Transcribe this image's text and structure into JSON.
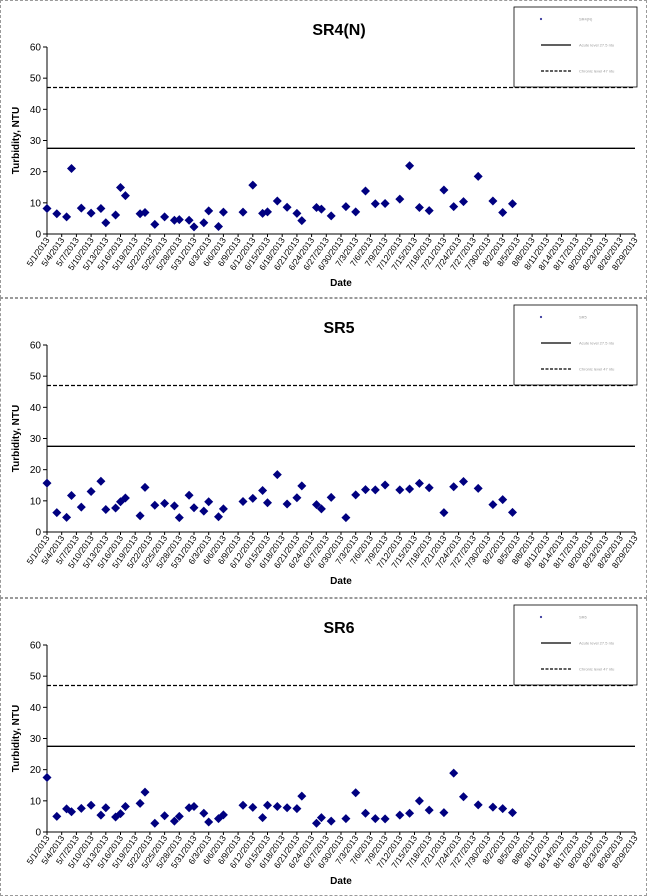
{
  "chart_data": [
    {
      "type": "scatter",
      "title": "SR4(N)",
      "xlabel": "Date",
      "ylabel": "Turbidity, NTU",
      "ylim": [
        0,
        60
      ],
      "yticks": [
        0,
        10,
        20,
        30,
        40,
        50,
        60
      ],
      "grid": false,
      "legend_position": "top-right",
      "legend": [
        "SR4(N)",
        "Acute level 27.5 ntu",
        "Chronic level 47 ntu"
      ],
      "reference_lines": [
        {
          "value": 27.5,
          "style": "solid"
        },
        {
          "value": 47,
          "style": "dashed"
        }
      ],
      "x_tick_labels": [
        "5/1/2013",
        "5/4/2013",
        "5/7/2013",
        "5/10/2013",
        "5/13/2013",
        "5/16/2013",
        "5/19/2013",
        "5/22/2013",
        "5/25/2013",
        "5/28/2013",
        "5/31/2013",
        "6/3/2013",
        "6/6/2013",
        "6/9/2013",
        "6/12/2013",
        "6/15/2013",
        "6/18/2013",
        "6/21/2013",
        "6/24/2013",
        "6/27/2013",
        "6/30/2013",
        "7/3/2013",
        "7/6/2013",
        "7/9/2013",
        "7/12/2013",
        "7/15/2013",
        "7/18/2013",
        "7/21/2013",
        "7/24/2013",
        "7/27/2013",
        "7/30/2013",
        "8/2/2013",
        "8/5/2013",
        "8/8/2013",
        "8/11/2013",
        "8/14/2013",
        "8/17/2013",
        "8/20/2013",
        "8/23/2013",
        "8/26/2013",
        "8/29/2013"
      ],
      "series": [
        {
          "name": "SR4(N)",
          "color": "#000080",
          "points": [
            [
              "5/1/2013",
              8.2
            ],
            [
              "5/3/2013",
              6.5
            ],
            [
              "5/5/2013",
              5.5
            ],
            [
              "5/6/2013",
              21
            ],
            [
              "5/8/2013",
              8.3
            ],
            [
              "5/10/2013",
              6.7
            ],
            [
              "5/12/2013",
              8.2
            ],
            [
              "5/13/2013",
              3.6
            ],
            [
              "5/15/2013",
              6.1
            ],
            [
              "5/16/2013",
              14.9
            ],
            [
              "5/17/2013",
              12.3
            ],
            [
              "5/20/2013",
              6.5
            ],
            [
              "5/21/2013",
              6.9
            ],
            [
              "5/23/2013",
              3.1
            ],
            [
              "5/25/2013",
              5.5
            ],
            [
              "5/27/2013",
              4.4
            ],
            [
              "5/28/2013",
              4.6
            ],
            [
              "5/30/2013",
              4.4
            ],
            [
              "5/31/2013",
              2.3
            ],
            [
              "6/2/2013",
              3.6
            ],
            [
              "6/3/2013",
              7.4
            ],
            [
              "6/5/2013",
              2.4
            ],
            [
              "6/6/2013",
              7
            ],
            [
              "6/10/2013",
              7
            ],
            [
              "6/12/2013",
              15.7
            ],
            [
              "6/14/2013",
              6.6
            ],
            [
              "6/15/2013",
              7.1
            ],
            [
              "6/17/2013",
              10.6
            ],
            [
              "6/19/2013",
              8.6
            ],
            [
              "6/21/2013",
              6.6
            ],
            [
              "6/22/2013",
              4.3
            ],
            [
              "6/25/2013",
              8.5
            ],
            [
              "6/26/2013",
              8
            ],
            [
              "6/28/2013",
              5.8
            ],
            [
              "7/1/2013",
              8.8
            ],
            [
              "7/3/2013",
              7.1
            ],
            [
              "7/5/2013",
              13.8
            ],
            [
              "7/7/2013",
              9.7
            ],
            [
              "7/9/2013",
              9.8
            ],
            [
              "7/12/2013",
              11.2
            ],
            [
              "7/14/2013",
              21.9
            ],
            [
              "7/16/2013",
              8.5
            ],
            [
              "7/18/2013",
              7.5
            ],
            [
              "7/21/2013",
              14.1
            ],
            [
              "7/23/2013",
              8.8
            ],
            [
              "7/25/2013",
              10.4
            ],
            [
              "7/28/2013",
              18.5
            ],
            [
              "7/31/2013",
              10.6
            ],
            [
              "8/2/2013",
              6.9
            ],
            [
              "8/4/2013",
              9.7
            ]
          ]
        }
      ]
    },
    {
      "type": "scatter",
      "title": "SR5",
      "xlabel": "Date",
      "ylabel": "Turbidity, NTU",
      "ylim": [
        0,
        60
      ],
      "yticks": [
        0,
        10,
        20,
        30,
        40,
        50,
        60
      ],
      "grid": false,
      "legend_position": "top-right",
      "legend": [
        "SR5",
        "Acute level 27.5 ntu",
        "Chronic level 47 ntu"
      ],
      "reference_lines": [
        {
          "value": 27.5,
          "style": "solid"
        },
        {
          "value": 47,
          "style": "dashed"
        }
      ],
      "x_tick_labels": [
        "5/1/2013",
        "5/4/2013",
        "5/7/2013",
        "5/10/2013",
        "5/13/2013",
        "5/16/2013",
        "5/19/2013",
        "5/22/2013",
        "5/25/2013",
        "5/28/2013",
        "5/31/2013",
        "6/3/2013",
        "6/6/2013",
        "6/9/2013",
        "6/12/2013",
        "6/15/2013",
        "6/18/2013",
        "6/21/2013",
        "6/24/2013",
        "6/27/2013",
        "6/30/2013",
        "7/3/2013",
        "7/6/2013",
        "7/9/2013",
        "7/12/2013",
        "7/15/2013",
        "7/18/2013",
        "7/21/2013",
        "7/24/2013",
        "7/27/2013",
        "7/30/2013",
        "8/2/2013",
        "8/5/2013",
        "8/8/2013",
        "8/11/2013",
        "8/14/2013",
        "8/17/2013",
        "8/20/2013",
        "8/23/2013",
        "8/26/2013",
        "8/29/2013"
      ],
      "series": [
        {
          "name": "SR5",
          "color": "#000080",
          "points": [
            [
              "5/1/2013",
              15.7
            ],
            [
              "5/3/2013",
              6.2
            ],
            [
              "5/5/2013",
              4.7
            ],
            [
              "5/6/2013",
              11.7
            ],
            [
              "5/8/2013",
              8
            ],
            [
              "5/10/2013",
              13
            ],
            [
              "5/12/2013",
              16.3
            ],
            [
              "5/13/2013",
              7.2
            ],
            [
              "5/15/2013",
              7.7
            ],
            [
              "5/16/2013",
              9.7
            ],
            [
              "5/17/2013",
              10.9
            ],
            [
              "5/20/2013",
              5.2
            ],
            [
              "5/21/2013",
              14.3
            ],
            [
              "5/23/2013",
              8.6
            ],
            [
              "5/25/2013",
              9.2
            ],
            [
              "5/27/2013",
              8.4
            ],
            [
              "5/28/2013",
              4.6
            ],
            [
              "5/30/2013",
              11.8
            ],
            [
              "5/31/2013",
              7.8
            ],
            [
              "6/2/2013",
              6.7
            ],
            [
              "6/3/2013",
              9.7
            ],
            [
              "6/5/2013",
              4.9
            ],
            [
              "6/6/2013",
              7.4
            ],
            [
              "6/10/2013",
              9.8
            ],
            [
              "6/12/2013",
              10.8
            ],
            [
              "6/14/2013",
              13.3
            ],
            [
              "6/15/2013",
              9.4
            ],
            [
              "6/17/2013",
              18.4
            ],
            [
              "6/19/2013",
              9
            ],
            [
              "6/21/2013",
              11
            ],
            [
              "6/22/2013",
              14.8
            ],
            [
              "6/25/2013",
              8.8
            ],
            [
              "6/26/2013",
              7.4
            ],
            [
              "6/28/2013",
              11.1
            ],
            [
              "7/1/2013",
              4.6
            ],
            [
              "7/3/2013",
              11.9
            ],
            [
              "7/5/2013",
              13.6
            ],
            [
              "7/7/2013",
              13.5
            ],
            [
              "7/9/2013",
              15.1
            ],
            [
              "7/12/2013",
              13.5
            ],
            [
              "7/14/2013",
              13.8
            ],
            [
              "7/16/2013",
              15.6
            ],
            [
              "7/18/2013",
              14.2
            ],
            [
              "7/21/2013",
              6.2
            ],
            [
              "7/23/2013",
              14.5
            ],
            [
              "7/25/2013",
              16.2
            ],
            [
              "7/28/2013",
              14
            ],
            [
              "7/31/2013",
              8.8
            ],
            [
              "8/2/2013",
              10.4
            ],
            [
              "8/4/2013",
              6.3
            ]
          ]
        }
      ]
    },
    {
      "type": "scatter",
      "title": "SR6",
      "xlabel": "Date",
      "ylabel": "Turbidity, NTU",
      "ylim": [
        0,
        60
      ],
      "yticks": [
        0,
        10,
        20,
        30,
        40,
        50,
        60
      ],
      "grid": false,
      "legend_position": "top-right",
      "legend": [
        "SR6",
        "Acute level 27.5 ntu",
        "Chronic level 47 ntu"
      ],
      "reference_lines": [
        {
          "value": 27.5,
          "style": "solid"
        },
        {
          "value": 47,
          "style": "dashed"
        }
      ],
      "x_tick_labels": [
        "5/1/2013",
        "5/4/2013",
        "5/7/2013",
        "5/10/2013",
        "5/13/2013",
        "5/16/2013",
        "5/19/2013",
        "5/22/2013",
        "5/25/2013",
        "5/28/2013",
        "5/31/2013",
        "6/3/2013",
        "6/6/2013",
        "6/9/2013",
        "6/12/2013",
        "6/15/2013",
        "6/18/2013",
        "6/21/2013",
        "6/24/2013",
        "6/27/2013",
        "6/30/2013",
        "7/3/2013",
        "7/6/2013",
        "7/9/2013",
        "7/12/2013",
        "7/15/2013",
        "7/18/2013",
        "7/21/2013",
        "7/24/2013",
        "7/27/2013",
        "7/30/2013",
        "8/2/2013",
        "8/5/2013",
        "8/8/2013",
        "8/11/2013",
        "8/14/2013",
        "8/17/2013",
        "8/20/2013",
        "8/23/2013",
        "8/26/2013",
        "8/29/2013"
      ],
      "series": [
        {
          "name": "SR6",
          "color": "#000080",
          "points": [
            [
              "5/1/2013",
              17.5
            ],
            [
              "5/3/2013",
              5
            ],
            [
              "5/5/2013",
              7.4
            ],
            [
              "5/6/2013",
              6.5
            ],
            [
              "5/8/2013",
              7.6
            ],
            [
              "5/10/2013",
              8.6
            ],
            [
              "5/12/2013",
              5.4
            ],
            [
              "5/13/2013",
              7.8
            ],
            [
              "5/15/2013",
              4.8
            ],
            [
              "5/16/2013",
              5.9
            ],
            [
              "5/17/2013",
              8.2
            ],
            [
              "5/20/2013",
              9.2
            ],
            [
              "5/21/2013",
              12.8
            ],
            [
              "5/23/2013",
              2.8
            ],
            [
              "5/25/2013",
              5.2
            ],
            [
              "5/27/2013",
              3.5
            ],
            [
              "5/28/2013",
              5
            ],
            [
              "5/30/2013",
              7.8
            ],
            [
              "5/31/2013",
              8.2
            ],
            [
              "6/2/2013",
              6
            ],
            [
              "6/3/2013",
              3.2
            ],
            [
              "6/5/2013",
              4.3
            ],
            [
              "6/6/2013",
              5.5
            ],
            [
              "6/10/2013",
              8.6
            ],
            [
              "6/12/2013",
              7.9
            ],
            [
              "6/14/2013",
              4.6
            ],
            [
              "6/15/2013",
              8.6
            ],
            [
              "6/17/2013",
              8.2
            ],
            [
              "6/19/2013",
              7.8
            ],
            [
              "6/21/2013",
              7.5
            ],
            [
              "6/22/2013",
              11.5
            ],
            [
              "6/25/2013",
              2.8
            ],
            [
              "6/26/2013",
              4.6
            ],
            [
              "6/28/2013",
              3.5
            ],
            [
              "7/1/2013",
              4.3
            ],
            [
              "7/3/2013",
              12.6
            ],
            [
              "7/5/2013",
              6
            ],
            [
              "7/7/2013",
              4.3
            ],
            [
              "7/9/2013",
              4.2
            ],
            [
              "7/12/2013",
              5.4
            ],
            [
              "7/14/2013",
              6
            ],
            [
              "7/16/2013",
              10
            ],
            [
              "7/18/2013",
              7
            ],
            [
              "7/21/2013",
              6.2
            ],
            [
              "7/23/2013",
              18.9
            ],
            [
              "7/25/2013",
              11.3
            ],
            [
              "7/28/2013",
              8.7
            ],
            [
              "7/31/2013",
              8
            ],
            [
              "8/2/2013",
              7.5
            ],
            [
              "8/4/2013",
              6.2
            ]
          ]
        }
      ]
    }
  ]
}
